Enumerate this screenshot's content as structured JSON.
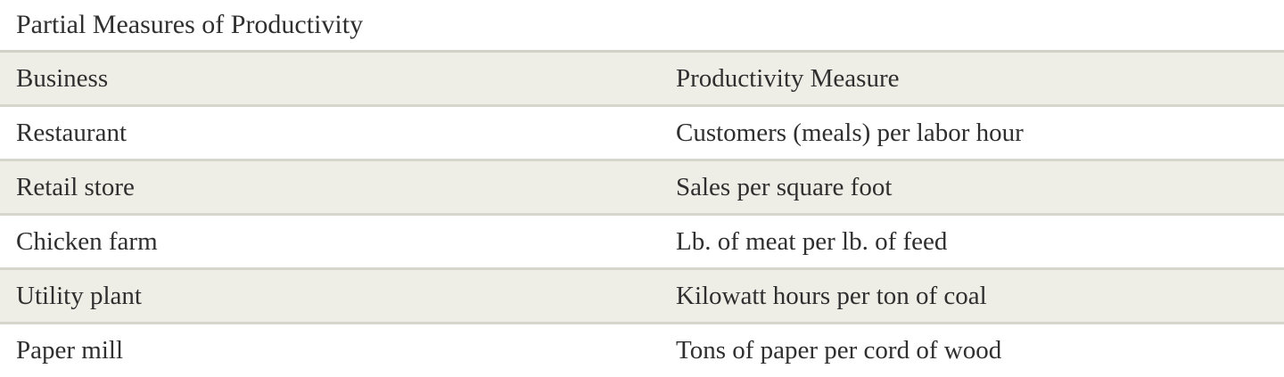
{
  "caption": "Partial Measures of Productivity",
  "headers": [
    "Business",
    "Productivity Measure"
  ],
  "rows": [
    [
      "Restaurant",
      "Customers (meals) per labor hour"
    ],
    [
      "Retail store",
      "Sales per square foot"
    ],
    [
      "Chicken farm",
      "Lb. of meat per lb. of feed"
    ],
    [
      "Utility plant",
      "Kilowatt hours per ton of coal"
    ],
    [
      "Paper mill",
      "Tons of paper per cord of wood"
    ]
  ],
  "colors": {
    "header_bg": "#efeee6",
    "stripe_bg": "#efeee6",
    "border": "#d6d6cc",
    "text": "#2f2f2f"
  }
}
